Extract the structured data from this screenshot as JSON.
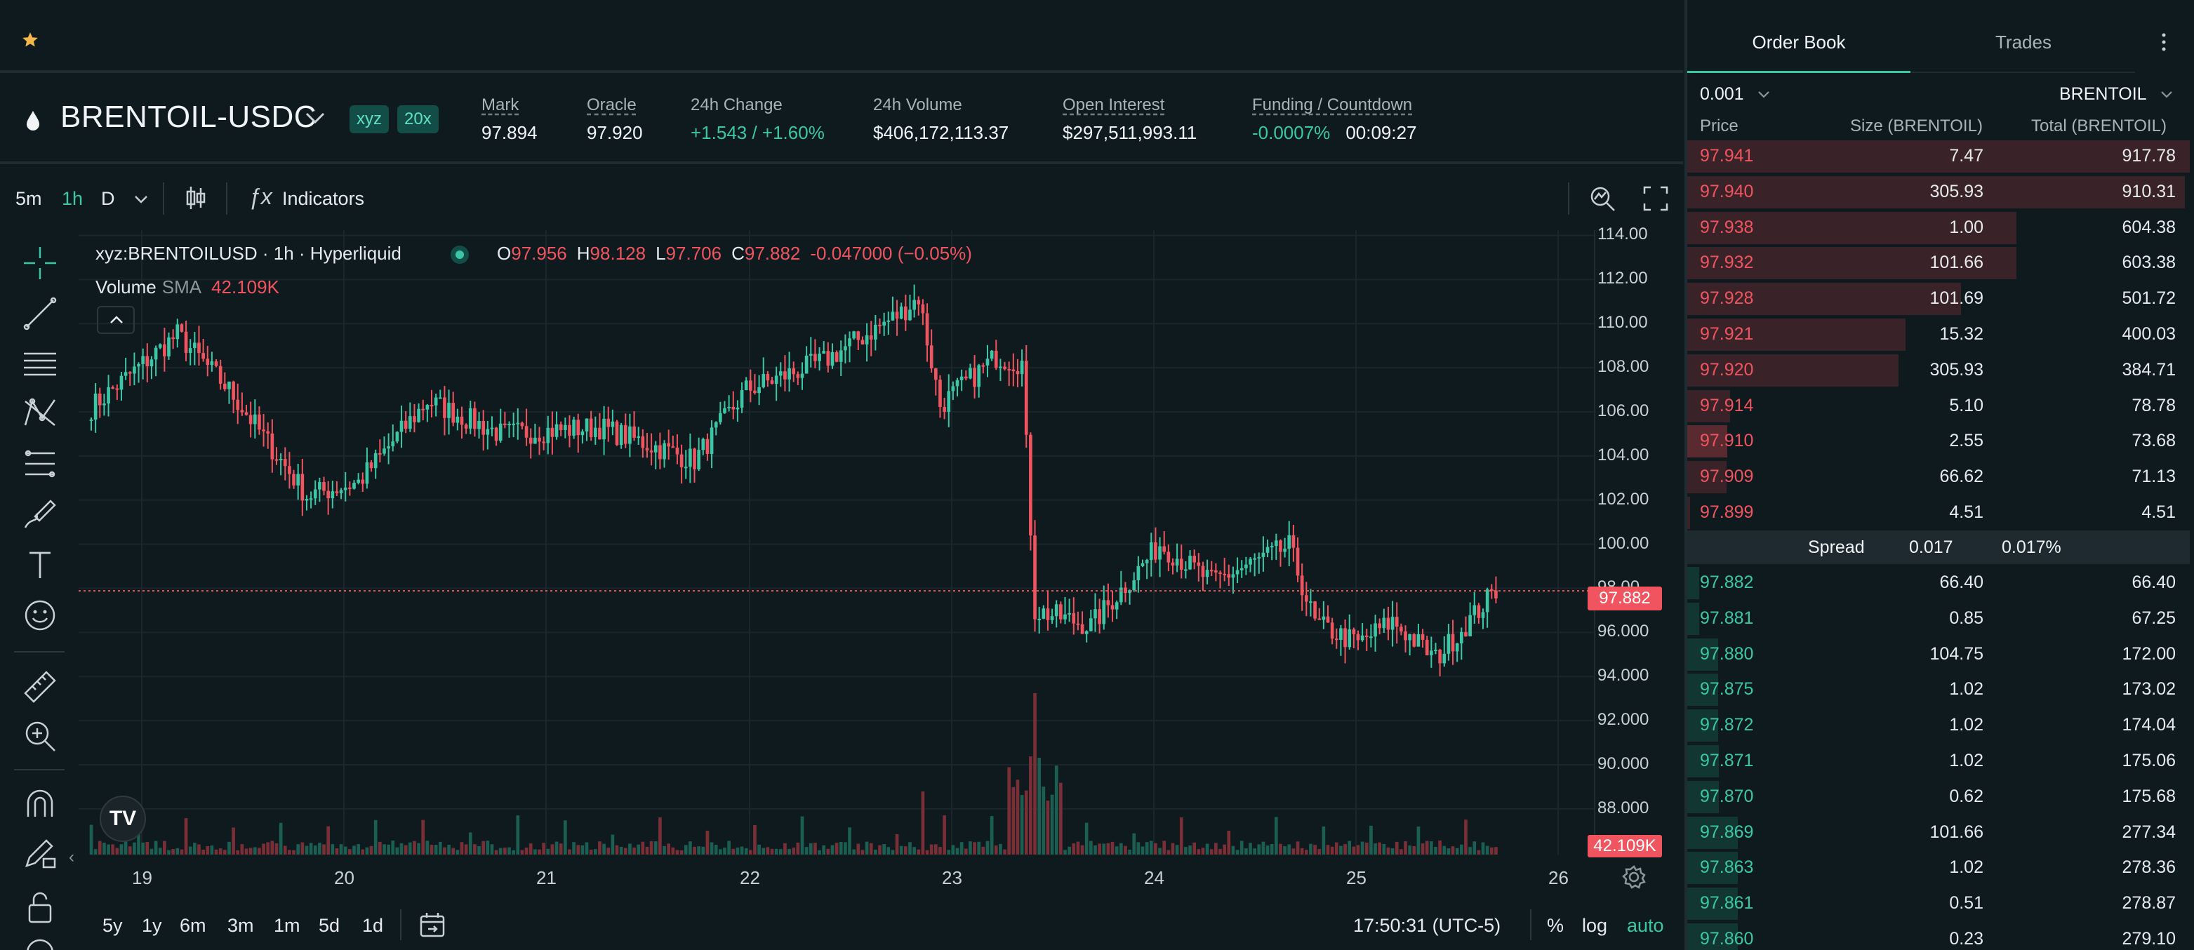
{
  "header": {
    "pair": "BRENTOIL-USDC",
    "dex_tag": "xyz",
    "leverage_tag": "20x",
    "stats": [
      {
        "label": "Mark",
        "value": "97.894",
        "underline": true
      },
      {
        "label": "Oracle",
        "value": "97.920",
        "underline": true
      },
      {
        "label": "24h Change",
        "value": "+1.543 / +1.60%",
        "underline": false,
        "positive": true
      },
      {
        "label": "24h Volume",
        "value": "$406,172,113.37",
        "underline": false
      },
      {
        "label": "Open Interest",
        "value": "$297,511,993.11",
        "underline": true
      },
      {
        "label": "Funding / Countdown",
        "value": "-0.0007%",
        "value2": "00:09:27",
        "underline": true
      }
    ]
  },
  "toolbar": {
    "timeframes": [
      "5m",
      "1h",
      "D"
    ],
    "active_timeframe": "1h",
    "indicators_label": "Indicators"
  },
  "chart": {
    "symbol_line": "xyz:BRENTOILUSD · 1h · Hyperliquid",
    "ohlc": {
      "O": "97.956",
      "H": "98.128",
      "L": "97.706",
      "C": "97.882",
      "change": "-0.047000 (−0.05%)"
    },
    "volume_label": "Volume",
    "sma_label": "SMA",
    "volume_value": "42.109K",
    "last_price_flag": "97.882",
    "volume_flag": "42.109K",
    "logo_text": "TV",
    "colors": {
      "up": "#3bc7a6",
      "down": "#f0545f",
      "grid": "#1a262b"
    }
  },
  "chart_data": {
    "type": "candlestick",
    "ylim": [
      86.5,
      115
    ],
    "yticks": [
      "114.00",
      "112.00",
      "110.00",
      "108.00",
      "106.00",
      "104.00",
      "102.00",
      "100.00",
      "98.00",
      "96.000",
      "94.000",
      "92.000",
      "90.000",
      "88.000"
    ],
    "xticks": [
      "19",
      "20",
      "21",
      "22",
      "23",
      "24",
      "25",
      "26"
    ],
    "last_price": 97.882,
    "key_points": [
      {
        "t": 0,
        "p": 106.2
      },
      {
        "t": 20,
        "p": 109.5
      },
      {
        "t": 32,
        "p": 107.0
      },
      {
        "t": 50,
        "p": 102.2
      },
      {
        "t": 62,
        "p": 102.8
      },
      {
        "t": 78,
        "p": 106.5
      },
      {
        "t": 95,
        "p": 105.0
      },
      {
        "t": 118,
        "p": 105.3
      },
      {
        "t": 140,
        "p": 103.8
      },
      {
        "t": 152,
        "p": 107.0
      },
      {
        "t": 170,
        "p": 108.3
      },
      {
        "t": 188,
        "p": 110.5
      },
      {
        "t": 192,
        "p": 111.2
      },
      {
        "t": 197,
        "p": 106.3
      },
      {
        "t": 210,
        "p": 108.5
      },
      {
        "t": 216,
        "p": 108.2
      },
      {
        "t": 219,
        "p": 97.0
      },
      {
        "t": 232,
        "p": 96.3
      },
      {
        "t": 248,
        "p": 100.0
      },
      {
        "t": 260,
        "p": 98.3
      },
      {
        "t": 268,
        "p": 99.0
      },
      {
        "t": 278,
        "p": 99.9
      },
      {
        "t": 284,
        "p": 96.4
      },
      {
        "t": 294,
        "p": 95.5
      },
      {
        "t": 302,
        "p": 96.5
      },
      {
        "t": 312,
        "p": 94.8
      },
      {
        "t": 326,
        "p": 97.9
      }
    ]
  },
  "bottom": {
    "ranges": [
      "5y",
      "1y",
      "6m",
      "3m",
      "1m",
      "5d",
      "1d"
    ],
    "clock": "17:50:31 (UTC-5)",
    "options": [
      "%",
      "log",
      "auto"
    ]
  },
  "orderbook": {
    "tabs": [
      "Order Book",
      "Trades"
    ],
    "tick_size": "0.001",
    "unit": "BRENTOIL",
    "headers": [
      "Price",
      "Size (BRENTOIL)",
      "Total (BRENTOIL)"
    ],
    "asks": [
      {
        "price": "97.941",
        "size": "7.47",
        "total": "917.78",
        "depth": 1.0
      },
      {
        "price": "97.940",
        "size": "305.93",
        "total": "910.31",
        "depth": 0.99
      },
      {
        "price": "97.938",
        "size": "1.00",
        "total": "604.38",
        "depth": 0.655
      },
      {
        "price": "97.932",
        "size": "101.66",
        "total": "603.38",
        "depth": 0.655
      },
      {
        "price": "97.928",
        "size": "101.69",
        "total": "501.72",
        "depth": 0.545
      },
      {
        "price": "97.921",
        "size": "15.32",
        "total": "400.03",
        "depth": 0.435
      },
      {
        "price": "97.920",
        "size": "305.93",
        "total": "384.71",
        "depth": 0.42
      },
      {
        "price": "97.914",
        "size": "5.10",
        "total": "78.78",
        "depth": 0.085
      },
      {
        "price": "97.910",
        "size": "2.55",
        "total": "73.68",
        "depth": 0.08,
        "highlight": true
      },
      {
        "price": "97.909",
        "size": "66.62",
        "total": "71.13",
        "depth": 0.078
      },
      {
        "price": "97.899",
        "size": "4.51",
        "total": "4.51",
        "depth": 0.005
      }
    ],
    "spread": {
      "label": "Spread",
      "value": "0.017",
      "pct": "0.017%"
    },
    "bids": [
      {
        "price": "97.882",
        "size": "66.40",
        "total": "66.40",
        "depth": 0.024
      },
      {
        "price": "97.881",
        "size": "0.85",
        "total": "67.25",
        "depth": 0.024
      },
      {
        "price": "97.880",
        "size": "104.75",
        "total": "172.00",
        "depth": 0.062
      },
      {
        "price": "97.875",
        "size": "1.02",
        "total": "173.02",
        "depth": 0.062
      },
      {
        "price": "97.872",
        "size": "1.02",
        "total": "174.04",
        "depth": 0.062
      },
      {
        "price": "97.871",
        "size": "1.02",
        "total": "175.06",
        "depth": 0.063
      },
      {
        "price": "97.870",
        "size": "0.62",
        "total": "175.68",
        "depth": 0.063
      },
      {
        "price": "97.869",
        "size": "101.66",
        "total": "277.34",
        "depth": 0.1
      },
      {
        "price": "97.863",
        "size": "1.02",
        "total": "278.36",
        "depth": 0.1
      },
      {
        "price": "97.861",
        "size": "0.51",
        "total": "278.87",
        "depth": 0.1
      },
      {
        "price": "97.860",
        "size": "0.23",
        "total": "279.10",
        "depth": 0.1
      }
    ]
  }
}
